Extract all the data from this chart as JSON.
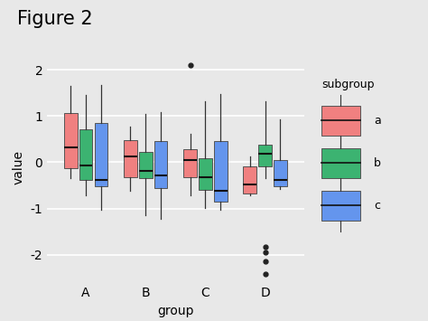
{
  "title": "Figure 2",
  "xlabel": "group",
  "ylabel": "value",
  "groups": [
    "A",
    "B",
    "C",
    "D"
  ],
  "subgroups": [
    "a",
    "b",
    "c"
  ],
  "colors": {
    "a": "#F08080",
    "b": "#3CB371",
    "c": "#6495ED"
  },
  "face_colors": {
    "a": "#F08080",
    "b": "#228B22",
    "c": "#4169E1"
  },
  "background_color": "#E8E8E8",
  "panel_color": "#E8E8E8",
  "grid_color": "#FFFFFF",
  "ylim": [
    -2.6,
    2.4
  ],
  "yticks": [
    -2,
    -1,
    0,
    1,
    2
  ],
  "boxplot_data": {
    "A": {
      "a": {
        "q1": -0.13,
        "median": 0.32,
        "q3": 1.07,
        "whislo": -0.35,
        "whishi": 1.65,
        "fliers": []
      },
      "b": {
        "q1": -0.38,
        "median": -0.07,
        "q3": 0.72,
        "whislo": -0.72,
        "whishi": 1.45,
        "fliers": []
      },
      "c": {
        "q1": -0.52,
        "median": -0.38,
        "q3": 0.85,
        "whislo": -1.02,
        "whishi": 1.68,
        "fliers": []
      }
    },
    "B": {
      "a": {
        "q1": -0.33,
        "median": 0.12,
        "q3": 0.48,
        "whislo": -0.62,
        "whishi": 0.78,
        "fliers": []
      },
      "b": {
        "q1": -0.35,
        "median": -0.18,
        "q3": 0.22,
        "whislo": -1.15,
        "whishi": 1.05,
        "fliers": []
      },
      "c": {
        "q1": -0.55,
        "median": -0.28,
        "q3": 0.45,
        "whislo": -1.22,
        "whishi": 1.08,
        "fliers": []
      }
    },
    "C": {
      "a": {
        "q1": -0.32,
        "median": 0.05,
        "q3": 0.28,
        "whislo": -0.72,
        "whishi": 0.62,
        "fliers": [
          2.1
        ]
      },
      "b": {
        "q1": -0.6,
        "median": -0.32,
        "q3": 0.08,
        "whislo": -0.98,
        "whishi": 1.32,
        "fliers": []
      },
      "c": {
        "q1": -0.85,
        "median": -0.62,
        "q3": 0.45,
        "whislo": -1.02,
        "whishi": 1.48,
        "fliers": []
      }
    },
    "D": {
      "a": {
        "q1": -0.68,
        "median": -0.48,
        "q3": -0.08,
        "whislo": -0.72,
        "whishi": 0.12,
        "fliers": []
      },
      "b": {
        "q1": -0.08,
        "median": 0.18,
        "q3": 0.38,
        "whislo": -0.35,
        "whishi": 1.32,
        "fliers": [
          -1.82,
          -1.95,
          -2.15,
          -2.42
        ]
      },
      "c": {
        "q1": -0.52,
        "median": -0.38,
        "q3": 0.05,
        "whislo": -0.58,
        "whishi": 0.92,
        "fliers": []
      }
    }
  }
}
